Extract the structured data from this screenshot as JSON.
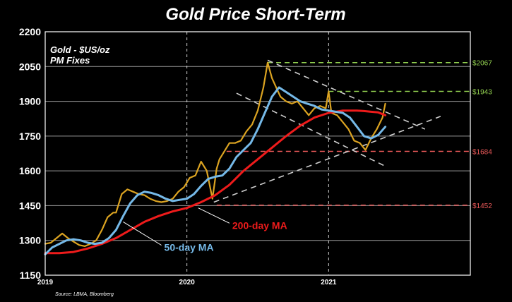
{
  "chart_data": {
    "type": "line",
    "title": "Gold Price Short-Term",
    "subtitle_lines": [
      "Gold - $US/oz",
      "PM Fixes"
    ],
    "source": "Source: LBMA, Bloomberg",
    "xlim": [
      2019.0,
      2022.0
    ],
    "x_ticks": [
      "2019",
      "2020",
      "2021"
    ],
    "ylim": [
      1150,
      2200
    ],
    "y_ticks": [
      1150,
      1300,
      1450,
      1600,
      1750,
      1900,
      2050,
      2200
    ],
    "grid": true,
    "colors": {
      "background": "#000000",
      "gold": "#dba321",
      "ma50": "#75b9e8",
      "ma200": "#ee1b1b",
      "resistance": "#92d050",
      "support": "#ee5a5a",
      "trend": "#cfcfcf"
    },
    "series": [
      {
        "name": "Gold",
        "x": [
          2019.0,
          2019.04,
          2019.08,
          2019.12,
          2019.16,
          2019.2,
          2019.24,
          2019.28,
          2019.32,
          2019.36,
          2019.4,
          2019.44,
          2019.48,
          2019.5,
          2019.54,
          2019.58,
          2019.62,
          2019.66,
          2019.7,
          2019.74,
          2019.78,
          2019.82,
          2019.86,
          2019.9,
          2019.94,
          2019.98,
          2020.02,
          2020.06,
          2020.1,
          2020.14,
          2020.18,
          2020.21,
          2020.23,
          2020.26,
          2020.3,
          2020.34,
          2020.38,
          2020.42,
          2020.46,
          2020.5,
          2020.54,
          2020.57,
          2020.6,
          2020.63,
          2020.66,
          2020.7,
          2020.74,
          2020.78,
          2020.82,
          2020.86,
          2020.9,
          2020.94,
          2020.98,
          2021.0,
          2021.02,
          2021.06,
          2021.1,
          2021.14,
          2021.18,
          2021.22,
          2021.26,
          2021.3,
          2021.34,
          2021.38,
          2021.4
        ],
        "values": [
          1285,
          1290,
          1310,
          1330,
          1310,
          1295,
          1280,
          1275,
          1285,
          1300,
          1345,
          1400,
          1420,
          1420,
          1500,
          1520,
          1510,
          1500,
          1495,
          1480,
          1470,
          1465,
          1470,
          1480,
          1510,
          1530,
          1570,
          1580,
          1640,
          1600,
          1480,
          1610,
          1650,
          1680,
          1720,
          1720,
          1730,
          1770,
          1800,
          1860,
          1960,
          2067,
          2000,
          1960,
          1920,
          1900,
          1890,
          1900,
          1870,
          1840,
          1870,
          1880,
          1870,
          1943,
          1850,
          1840,
          1810,
          1780,
          1730,
          1720,
          1690,
          1740,
          1780,
          1830,
          1890
        ]
      },
      {
        "name": "50-day MA",
        "x": [
          2019.0,
          2019.05,
          2019.1,
          2019.15,
          2019.2,
          2019.25,
          2019.3,
          2019.35,
          2019.4,
          2019.45,
          2019.5,
          2019.55,
          2019.6,
          2019.65,
          2019.7,
          2019.75,
          2019.8,
          2019.85,
          2019.9,
          2019.95,
          2020.0,
          2020.05,
          2020.1,
          2020.15,
          2020.2,
          2020.25,
          2020.3,
          2020.35,
          2020.4,
          2020.45,
          2020.5,
          2020.55,
          2020.6,
          2020.65,
          2020.7,
          2020.75,
          2020.8,
          2020.85,
          2020.9,
          2020.95,
          2021.0,
          2021.05,
          2021.1,
          2021.15,
          2021.2,
          2021.25,
          2021.3,
          2021.35,
          2021.4
        ],
        "values": [
          1240,
          1270,
          1285,
          1300,
          1305,
          1300,
          1290,
          1285,
          1290,
          1310,
          1345,
          1405,
          1460,
          1495,
          1510,
          1505,
          1495,
          1480,
          1470,
          1475,
          1480,
          1500,
          1535,
          1565,
          1575,
          1580,
          1610,
          1660,
          1690,
          1720,
          1780,
          1850,
          1920,
          1960,
          1940,
          1920,
          1900,
          1890,
          1880,
          1865,
          1860,
          1855,
          1850,
          1830,
          1790,
          1750,
          1740,
          1755,
          1790
        ]
      },
      {
        "name": "200-day MA",
        "x": [
          2019.0,
          2019.1,
          2019.2,
          2019.3,
          2019.4,
          2019.5,
          2019.6,
          2019.7,
          2019.8,
          2019.9,
          2020.0,
          2020.1,
          2020.2,
          2020.3,
          2020.4,
          2020.5,
          2020.6,
          2020.7,
          2020.8,
          2020.9,
          2021.0,
          2021.05,
          2021.1,
          2021.15,
          2021.2,
          2021.25,
          2021.3,
          2021.35,
          2021.4
        ],
        "values": [
          1245,
          1245,
          1250,
          1265,
          1285,
          1310,
          1345,
          1380,
          1405,
          1425,
          1440,
          1465,
          1495,
          1540,
          1600,
          1650,
          1700,
          1750,
          1795,
          1830,
          1850,
          1855,
          1860,
          1860,
          1860,
          1858,
          1855,
          1852,
          1840
        ]
      }
    ],
    "lines": [
      {
        "name": "2067 resistance",
        "label": "$2067",
        "kind": "resistance",
        "y": 2067,
        "x_from": 2020.57
      },
      {
        "name": "1943 resistance",
        "label": "$1943",
        "kind": "resistance",
        "y": 1943,
        "x_from": 2021.0
      },
      {
        "name": "1684 support",
        "label": "$1684",
        "kind": "support",
        "y": 1684,
        "x_from": 2020.28
      },
      {
        "name": "1452 support",
        "label": "$1452",
        "kind": "support",
        "y": 1452,
        "x_from": 2020.21
      }
    ],
    "trendlines": [
      {
        "name": "upper channel",
        "x": [
          2020.57,
          2021.68
        ],
        "y": [
          2077,
          1780
        ]
      },
      {
        "name": "lower channel",
        "x": [
          2020.35,
          2021.4
        ],
        "y": [
          1935,
          1620
        ]
      },
      {
        "name": "rising support",
        "x": [
          2020.19,
          2021.79
        ],
        "y": [
          1465,
          1835
        ]
      }
    ],
    "annotations": [
      {
        "name": "ma200-label",
        "text": "200-day MA",
        "series": "ma200",
        "at_x": 2020.32,
        "at_y": 1350,
        "point_x": 2020.08,
        "point_y": 1440
      },
      {
        "name": "ma50-label",
        "text": "50-day MA",
        "series": "ma50",
        "at_x": 2019.84,
        "at_y": 1255,
        "point_x": 2019.55,
        "point_y": 1380
      }
    ]
  }
}
